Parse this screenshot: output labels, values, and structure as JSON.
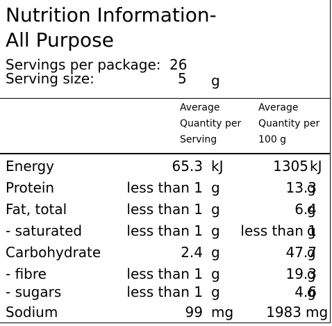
{
  "panel": {
    "title_line1": "Nutrition Information-",
    "title_line2": "All Purpose",
    "servings_label": "Servings per package:",
    "servings_value": "26",
    "serving_size_label": "Serving size:",
    "serving_size_value": "5",
    "serving_size_unit": "g"
  },
  "columns": {
    "per_serving": "Average\nQuantity per\nServing",
    "per_100g": "Average\nQuantity per\n100 g"
  },
  "rows": [
    {
      "name": "Energy",
      "serving_value": "65.3",
      "serving_unit": "kJ",
      "per100_value": "1305",
      "per100_unit": "kJ"
    },
    {
      "name": "Protein",
      "serving_value": "less than 1",
      "serving_unit": "g",
      "per100_value": "13.3",
      "per100_unit": "g"
    },
    {
      "name": "Fat, total",
      "serving_value": "less than 1",
      "serving_unit": "g",
      "per100_value": "6.4",
      "per100_unit": "g"
    },
    {
      "name": "- saturated",
      "serving_value": "less than 1",
      "serving_unit": "g",
      "per100_value": "less than 1",
      "per100_unit": "g"
    },
    {
      "name": "Carbohydrate",
      "serving_value": "2.4",
      "serving_unit": "g",
      "per100_value": "47.7",
      "per100_unit": "g"
    },
    {
      "name": "- fibre",
      "serving_value": "less than 1",
      "serving_unit": "g",
      "per100_value": "19.3",
      "per100_unit": "g"
    },
    {
      "name": "- sugars",
      "serving_value": "less than 1",
      "serving_unit": "g",
      "per100_value": "4.6",
      "per100_unit": "g"
    },
    {
      "name": "Sodium",
      "serving_value": "99",
      "serving_unit": "mg",
      "per100_value": "1983",
      "per100_unit": "mg"
    }
  ]
}
